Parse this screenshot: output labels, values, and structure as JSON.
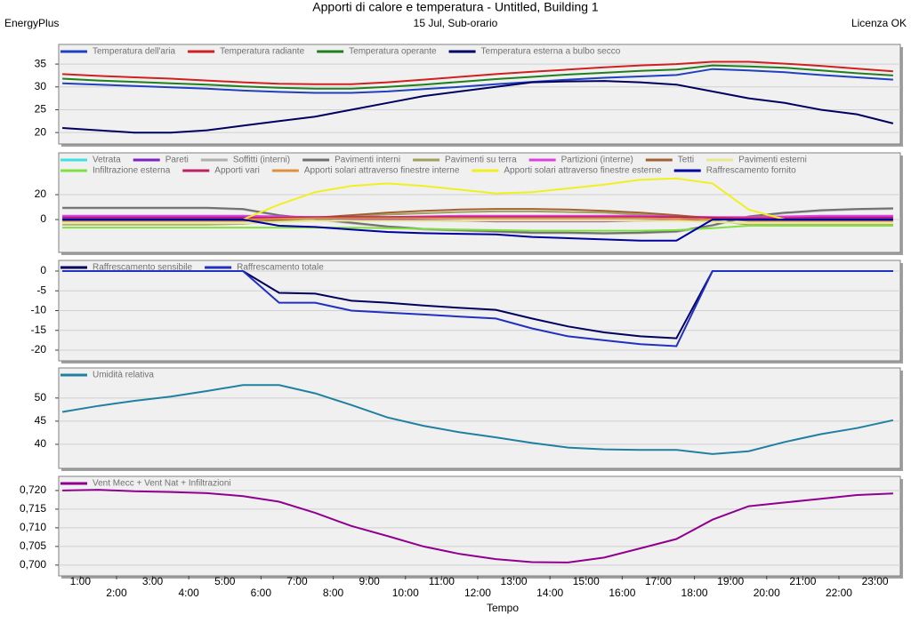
{
  "header": {
    "title": "Apporti di calore e temperatura - Untitled, Building 1",
    "subtitle": "15 Jul, Sub-orario",
    "left": "EnergyPlus",
    "right": "Licenza OK"
  },
  "chart_data": [
    {
      "type": "line",
      "grid": true,
      "x": [
        0.5,
        1.5,
        2.5,
        3.5,
        4.5,
        5.5,
        6.5,
        7.5,
        8.5,
        9.5,
        10.5,
        11.5,
        12.5,
        13.5,
        14.5,
        15.5,
        16.5,
        17.5,
        18.5,
        19.5,
        20.5,
        21.5,
        22.5,
        23.5
      ],
      "ylim": [
        17.5,
        39.3
      ],
      "yticks": [
        20,
        25,
        30,
        35
      ],
      "series": [
        {
          "name": "Temperatura dell'aria",
          "color": "#2040c0",
          "values": [
            30.8,
            30.5,
            30.2,
            29.9,
            29.6,
            29.2,
            28.9,
            28.7,
            28.7,
            29,
            29.5,
            30,
            30.6,
            31.1,
            31.6,
            32,
            32.3,
            32.6,
            33.9,
            33.6,
            33.2,
            32.6,
            32.1,
            31.6
          ]
        },
        {
          "name": "Temperatura radiante",
          "color": "#d02020",
          "values": [
            32.8,
            32.4,
            32.1,
            31.8,
            31.4,
            31,
            30.7,
            30.6,
            30.6,
            31,
            31.6,
            32.2,
            32.8,
            33.3,
            33.8,
            34.3,
            34.7,
            35,
            35.5,
            35.5,
            35.1,
            34.6,
            34,
            33.4
          ]
        },
        {
          "name": "Temperatura operante",
          "color": "#208020",
          "values": [
            31.8,
            31.4,
            31.1,
            30.8,
            30.5,
            30.1,
            29.8,
            29.6,
            29.6,
            30,
            30.5,
            31.1,
            31.7,
            32.2,
            32.7,
            33.1,
            33.5,
            33.8,
            34.7,
            34.5,
            34.2,
            33.6,
            33,
            32.5
          ]
        },
        {
          "name": "Temperatura esterna a bulbo secco",
          "color": "#000060",
          "values": [
            21,
            20.5,
            20,
            20,
            20.5,
            21.5,
            22.5,
            23.5,
            25,
            26.5,
            28,
            29,
            30,
            31,
            31.2,
            31.3,
            31,
            30.5,
            29,
            27.5,
            26.5,
            25,
            24,
            22
          ]
        }
      ]
    },
    {
      "type": "line",
      "grid": true,
      "x": [
        0.5,
        1.5,
        2.5,
        3.5,
        4.5,
        5.5,
        6.5,
        7.5,
        8.5,
        9.5,
        10.5,
        11.5,
        12.5,
        13.5,
        14.5,
        15.5,
        16.5,
        17.5,
        18.5,
        19.5,
        20.5,
        21.5,
        22.5,
        23.5
      ],
      "ylim": [
        -26.4,
        53.6
      ],
      "yticks": [
        0,
        20
      ],
      "series": [
        {
          "name": "Vetrata",
          "color": "#40e0e0",
          "values": [
            1,
            1,
            1,
            1,
            1,
            1,
            0.5,
            0,
            0,
            -0.5,
            -1,
            -1,
            -1,
            -1,
            -1,
            -1,
            -1,
            -0.5,
            0,
            0.5,
            1,
            1,
            1,
            1
          ]
        },
        {
          "name": "Pareti",
          "color": "#8020c0",
          "values": [
            2,
            2,
            2,
            2,
            2,
            2,
            1.5,
            1,
            0.5,
            0,
            -0.5,
            -1,
            -1.5,
            -1.5,
            -1.5,
            -1.5,
            -1,
            -0.5,
            0,
            1,
            1.5,
            2,
            2,
            2
          ]
        },
        {
          "name": "Soffitti (interni)",
          "color": "#b0b0b0",
          "values": [
            9,
            9,
            9,
            9,
            9,
            8,
            3,
            0,
            -3,
            -6,
            -8,
            -9,
            -10,
            -11,
            -11,
            -11.5,
            -11,
            -10,
            -5,
            2,
            5,
            7,
            8,
            8.5
          ]
        },
        {
          "name": "Pavimenti interni",
          "color": "#707070",
          "values": [
            9.5,
            9.5,
            9.5,
            9.5,
            9.5,
            8.5,
            3.5,
            0.5,
            -2.5,
            -5.5,
            -7.5,
            -8.5,
            -9.5,
            -10.5,
            -10.5,
            -11,
            -10.5,
            -9.5,
            -4.5,
            2.5,
            5.5,
            7.5,
            8.5,
            9
          ]
        },
        {
          "name": "Pavimenti su terra",
          "color": "#a0a060",
          "values": [
            -4,
            -4,
            -4,
            -4,
            -4,
            -3.5,
            -1,
            1,
            2.5,
            4,
            5,
            6,
            6.5,
            6.5,
            6,
            5.5,
            4,
            2.5,
            -1,
            -4,
            -4,
            -4,
            -4,
            -4
          ]
        },
        {
          "name": "Partizioni (interne)",
          "color": "#e040e0",
          "values": [
            3,
            3,
            3,
            3,
            3,
            3,
            2.5,
            2,
            2,
            2,
            2.5,
            3,
            3,
            3,
            3,
            3,
            3,
            2.5,
            2,
            2,
            2.5,
            3,
            3,
            3
          ]
        },
        {
          "name": "Tetti",
          "color": "#a06030",
          "values": [
            -1,
            -1,
            -1,
            -1,
            -1,
            -1,
            0,
            1.5,
            3.5,
            5.5,
            7,
            8,
            8.5,
            8.5,
            8,
            7,
            5.5,
            3.5,
            1,
            -1,
            -1,
            -1,
            -1,
            -1
          ]
        },
        {
          "name": "Pavimenti esterni",
          "color": "#e8e890",
          "values": [
            -3,
            -3,
            -3,
            -3,
            -3,
            -3,
            -2,
            -1,
            -1,
            -1,
            -1,
            -1,
            -1,
            -1,
            -1,
            -1,
            -1,
            -1,
            -2,
            -3,
            -3,
            -3,
            -3,
            -3
          ]
        },
        {
          "name": "Infiltrazione esterna",
          "color": "#80e040",
          "values": [
            -6.5,
            -6.5,
            -6.5,
            -6.5,
            -6.5,
            -6.5,
            -6.5,
            -6.5,
            -6.5,
            -7,
            -7.5,
            -8,
            -8.5,
            -9,
            -9,
            -9,
            -9,
            -8.5,
            -7,
            -5,
            -5,
            -5,
            -5,
            -5
          ]
        },
        {
          "name": "Apporti vari",
          "color": "#c02060",
          "values": [
            1,
            1,
            1,
            1,
            1,
            1,
            1.5,
            2,
            2,
            2,
            2,
            2,
            2,
            2,
            2,
            2,
            2,
            2,
            1.5,
            1,
            1,
            1,
            1,
            1
          ]
        },
        {
          "name": "Apporti solari attraverso finestre interne",
          "color": "#e09040",
          "values": [
            0,
            0,
            0,
            0,
            0,
            0,
            0.5,
            1,
            1,
            1,
            1,
            1,
            1,
            1,
            1,
            1,
            1,
            0.5,
            0,
            0,
            0,
            0,
            0,
            0
          ]
        },
        {
          "name": "Apporti solari attraverso finestre esterne",
          "color": "#f0f020",
          "values": [
            0,
            0,
            0,
            0,
            0,
            0,
            12,
            22,
            27,
            29,
            27,
            24,
            21,
            22,
            25,
            28,
            32,
            33,
            29,
            8,
            0,
            0,
            0,
            0
          ]
        },
        {
          "name": "Raffrescamento fornito",
          "color": "#0000a0",
          "values": [
            0,
            0,
            0,
            0,
            0,
            0,
            -5,
            -6,
            -8,
            -10,
            -11,
            -11.5,
            -12,
            -14,
            -15,
            -16,
            -17,
            -17,
            0,
            0,
            0,
            0,
            0,
            0
          ]
        }
      ]
    },
    {
      "type": "line",
      "grid": true,
      "x": [
        0.5,
        1.5,
        2.5,
        3.5,
        4.5,
        5.5,
        6.5,
        7.5,
        8.5,
        9.5,
        10.5,
        11.5,
        12.5,
        13.5,
        14.5,
        15.5,
        16.5,
        17.5,
        18.5,
        19.5,
        20.5,
        21.5,
        22.5,
        23.5
      ],
      "ylim": [
        -22.7,
        2.7
      ],
      "yticks": [
        -20,
        -15,
        -10,
        -5,
        0
      ],
      "series": [
        {
          "name": "Raffrescamento sensibile",
          "color": "#000060",
          "values": [
            0,
            0,
            0,
            0,
            0,
            0,
            -5.5,
            -5.7,
            -7.5,
            -8,
            -8.7,
            -9.3,
            -9.8,
            -12,
            -14,
            -15.5,
            -16.5,
            -17,
            0,
            0,
            0,
            0,
            0,
            0
          ]
        },
        {
          "name": "Raffrescamento totale",
          "color": "#2030c0",
          "values": [
            0,
            0,
            0,
            0,
            0,
            0,
            -8,
            -8,
            -10,
            -10.5,
            -11,
            -11.5,
            -12,
            -14.5,
            -16.5,
            -17.5,
            -18.5,
            -19,
            0,
            0,
            0,
            0,
            0,
            0
          ]
        }
      ]
    },
    {
      "type": "line",
      "grid": true,
      "x": [
        0.5,
        1.5,
        2.5,
        3.5,
        4.5,
        5.5,
        6.5,
        7.5,
        8.5,
        9.5,
        10.5,
        11.5,
        12.5,
        13.5,
        14.5,
        15.5,
        16.5,
        17.5,
        18.5,
        19.5,
        20.5,
        21.5,
        22.5,
        23.5
      ],
      "ylim": [
        34.8,
        56.5
      ],
      "yticks": [
        40,
        45,
        50
      ],
      "series": [
        {
          "name": "Umidità relativa",
          "color": "#2080a0",
          "values": [
            47,
            48.3,
            49.4,
            50.3,
            51.5,
            52.8,
            52.8,
            51,
            48.5,
            45.8,
            44,
            42.6,
            41.5,
            40.3,
            39.3,
            38.9,
            38.8,
            38.8,
            37.9,
            38.5,
            40.5,
            42.2,
            43.5,
            45.2
          ]
        }
      ]
    },
    {
      "type": "line",
      "grid": true,
      "xlabel": "Tempo",
      "x": [
        0.5,
        1.5,
        2.5,
        3.5,
        4.5,
        5.5,
        6.5,
        7.5,
        8.5,
        9.5,
        10.5,
        11.5,
        12.5,
        13.5,
        14.5,
        15.5,
        16.5,
        17.5,
        18.5,
        19.5,
        20.5,
        21.5,
        22.5,
        23.5
      ],
      "xlim": [
        0.4,
        23.7
      ],
      "xticks": [
        {
          "value": 1,
          "label": "1:00"
        },
        {
          "value": 2,
          "label": "2:00"
        },
        {
          "value": 3,
          "label": "3:00"
        },
        {
          "value": 4,
          "label": "4:00"
        },
        {
          "value": 5,
          "label": "5:00"
        },
        {
          "value": 6,
          "label": "6:00"
        },
        {
          "value": 7,
          "label": "7:00"
        },
        {
          "value": 8,
          "label": "8:00"
        },
        {
          "value": 9,
          "label": "9:00"
        },
        {
          "value": 10,
          "label": "10:00"
        },
        {
          "value": 11,
          "label": "11:00"
        },
        {
          "value": 12,
          "label": "12:00"
        },
        {
          "value": 13,
          "label": "13:00"
        },
        {
          "value": 14,
          "label": "14:00"
        },
        {
          "value": 15,
          "label": "15:00"
        },
        {
          "value": 16,
          "label": "16:00"
        },
        {
          "value": 17,
          "label": "17:00"
        },
        {
          "value": 18,
          "label": "18:00"
        },
        {
          "value": 19,
          "label": "19:00"
        },
        {
          "value": 20,
          "label": "20:00"
        },
        {
          "value": 21,
          "label": "21:00"
        },
        {
          "value": 22,
          "label": "22:00"
        },
        {
          "value": 23,
          "label": "23:00"
        }
      ],
      "ylim": [
        0.6971,
        0.7238
      ],
      "yticks": [
        {
          "value": 0.7,
          "label": "0,700"
        },
        {
          "value": 0.705,
          "label": "0,705"
        },
        {
          "value": 0.71,
          "label": "0,710"
        },
        {
          "value": 0.715,
          "label": "0,715"
        },
        {
          "value": 0.72,
          "label": "0,720"
        }
      ],
      "series": [
        {
          "name": "Vent Mecc + Vent Nat + Infiltrazioni",
          "color": "#900090",
          "values": [
            0.72,
            0.7202,
            0.7198,
            0.7196,
            0.7193,
            0.7185,
            0.717,
            0.714,
            0.7105,
            0.7078,
            0.705,
            0.703,
            0.7016,
            0.7008,
            0.7007,
            0.702,
            0.7045,
            0.707,
            0.7122,
            0.7158,
            0.7168,
            0.7178,
            0.7188,
            0.7192
          ]
        }
      ]
    }
  ]
}
